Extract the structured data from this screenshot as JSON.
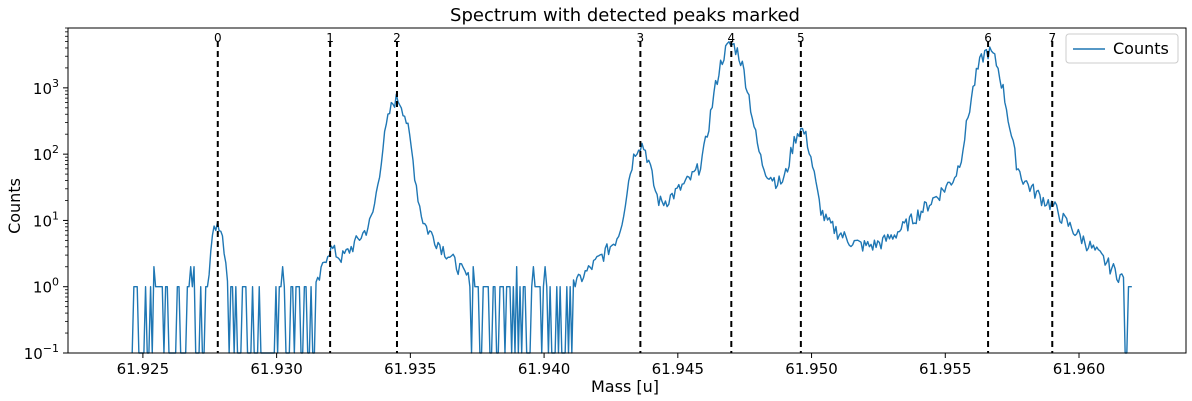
{
  "chart_data": {
    "type": "line",
    "title": "Spectrum with detected peaks marked",
    "xlabel": "Mass [u]",
    "ylabel": "Counts",
    "yscale": "log",
    "xlim": [
      61.9222,
      61.964
    ],
    "ylim": [
      0.1,
      8000
    ],
    "xticks": [
      {
        "value": 61.925,
        "label": "61.925"
      },
      {
        "value": 61.93,
        "label": "61.930"
      },
      {
        "value": 61.935,
        "label": "61.935"
      },
      {
        "value": 61.94,
        "label": "61.940"
      },
      {
        "value": 61.945,
        "label": "61.945"
      },
      {
        "value": 61.95,
        "label": "61.950"
      },
      {
        "value": 61.955,
        "label": "61.955"
      },
      {
        "value": 61.96,
        "label": "61.960"
      }
    ],
    "yticks": [
      {
        "value": 0.1,
        "base": "10",
        "exp": "−1"
      },
      {
        "value": 1,
        "base": "10",
        "exp": "0"
      },
      {
        "value": 10,
        "base": "10",
        "exp": "1"
      },
      {
        "value": 100,
        "base": "10",
        "exp": "2"
      },
      {
        "value": 1000,
        "base": "10",
        "exp": "3"
      }
    ],
    "legend": {
      "placement": "top-right",
      "entries": [
        "Counts"
      ]
    },
    "series": [
      {
        "name": "Counts",
        "color": "#1f77b4",
        "peaks": [
          {
            "center": 61.9278,
            "height": 9,
            "width": 0.00018
          },
          {
            "center": 61.932,
            "height": 2,
            "width": 0.0002
          },
          {
            "center": 61.9345,
            "height": 650,
            "width": 0.00028
          },
          {
            "center": 61.9436,
            "height": 130,
            "width": 0.00026
          },
          {
            "center": 61.947,
            "height": 4300,
            "width": 0.00034
          },
          {
            "center": 61.9496,
            "height": 210,
            "width": 0.00026
          },
          {
            "center": 61.9566,
            "height": 3400,
            "width": 0.00034
          },
          {
            "center": 61.959,
            "height": 2,
            "width": 0.0002
          }
        ],
        "x_range": [
          61.9246,
          61.962
        ],
        "baseline": 1
      }
    ],
    "marked_peaks": [
      {
        "label": "0",
        "x": 61.9278
      },
      {
        "label": "1",
        "x": 61.932
      },
      {
        "label": "2",
        "x": 61.9345
      },
      {
        "label": "3",
        "x": 61.9436
      },
      {
        "label": "4",
        "x": 61.947
      },
      {
        "label": "5",
        "x": 61.9496
      },
      {
        "label": "6",
        "x": 61.9566
      },
      {
        "label": "7",
        "x": 61.959
      }
    ]
  }
}
